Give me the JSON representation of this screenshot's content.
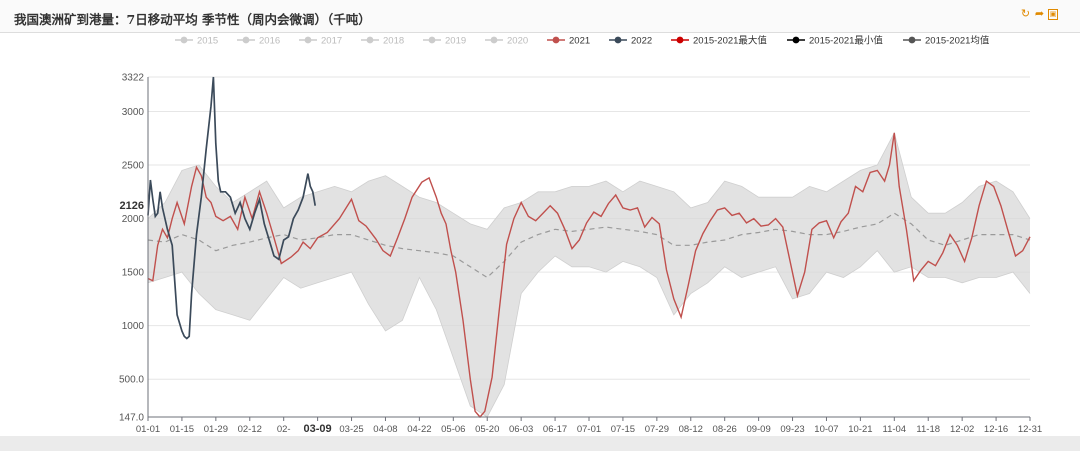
{
  "title": "我国澳洲矿到港量：7日移动平均 季节性（周内会微调）（千吨）",
  "toolbar": {
    "refresh_icon": "refresh-icon",
    "share_icon": "share-icon",
    "save_icon": "save-image-icon"
  },
  "colors": {
    "y2021": "#c0504d",
    "y2022": "#3b4a5a",
    "band": "#d8d8d8",
    "avg": "#9a9a9a",
    "inactive": "#cccccc",
    "max_marker": "#cc0000",
    "min_marker": "#000000",
    "avg_marker": "#555555"
  },
  "chart_data": {
    "type": "line",
    "title": "我国澳洲矿到港量：7日移动平均 季节性（周内会微调）（千吨）",
    "ylim": [
      147,
      3322
    ],
    "y_ticks": [
      "147.0",
      "500.0",
      "1000",
      "1500",
      "2000",
      "2500",
      "3000",
      "3322"
    ],
    "x_ticks": [
      "01-01",
      "01-15",
      "01-29",
      "02-12",
      "02-",
      "03-09",
      "03-25",
      "04-08",
      "04-22",
      "05-06",
      "05-20",
      "06-03",
      "06-17",
      "07-01",
      "07-15",
      "07-29",
      "08-12",
      "08-26",
      "09-09",
      "09-23",
      "10-07",
      "10-21",
      "11-04",
      "11-18",
      "12-02",
      "12-16",
      "12-31"
    ],
    "pointer": {
      "x_label": "03-09",
      "y_label": "2126"
    },
    "grid": true,
    "legend_position": "top",
    "legend": [
      {
        "name": "2015",
        "active": false
      },
      {
        "name": "2016",
        "active": false
      },
      {
        "name": "2017",
        "active": false
      },
      {
        "name": "2018",
        "active": false
      },
      {
        "name": "2019",
        "active": false
      },
      {
        "name": "2020",
        "active": false
      },
      {
        "name": "2021",
        "active": true
      },
      {
        "name": "2022",
        "active": true
      },
      {
        "name": "2015-2021最大值",
        "active": true
      },
      {
        "name": "2015-2021最小值",
        "active": true
      },
      {
        "name": "2015-2021均值",
        "active": true
      }
    ],
    "series": [
      {
        "name": "2021",
        "x": [
          1,
          3,
          5,
          7,
          9,
          11,
          13,
          16,
          19,
          21,
          23,
          25,
          27,
          29,
          32,
          35,
          38,
          41,
          44,
          47,
          50,
          53,
          56,
          60,
          63,
          65,
          68,
          71,
          75,
          80,
          85,
          88,
          91,
          95,
          98,
          101,
          104,
          107,
          110,
          114,
          117,
          120,
          122,
          124,
          126,
          128,
          131,
          134,
          136,
          138,
          140,
          143,
          146,
          149,
          152,
          155,
          158,
          161,
          164,
          167,
          170,
          173,
          176,
          179,
          182,
          185,
          188,
          191,
          194,
          197,
          200,
          203,
          206,
          209,
          212,
          215,
          218,
          221,
          224,
          227,
          230,
          233,
          236,
          239,
          242,
          245,
          248,
          251,
          254,
          257,
          260,
          263,
          266,
          269,
          272,
          275,
          278,
          281,
          284,
          287,
          290,
          293,
          296,
          299,
          302,
          305,
          307,
          309,
          311,
          314,
          317,
          320,
          323,
          326,
          329,
          332,
          335,
          338,
          341,
          344,
          347,
          350,
          353,
          356,
          359,
          362,
          365
        ],
        "values": [
          1440,
          1420,
          1750,
          1900,
          1820,
          2000,
          2150,
          1950,
          2300,
          2480,
          2400,
          2200,
          2150,
          2020,
          1980,
          2020,
          1900,
          2200,
          2000,
          2250,
          2050,
          1820,
          1580,
          1640,
          1700,
          1780,
          1720,
          1820,
          1870,
          2000,
          2180,
          1980,
          1930,
          1810,
          1700,
          1650,
          1820,
          2000,
          2200,
          2340,
          2380,
          2200,
          2050,
          1950,
          1700,
          1500,
          1050,
          500,
          200,
          147,
          200,
          520,
          1150,
          1760,
          2000,
          2150,
          2020,
          1980,
          2050,
          2120,
          2050,
          1900,
          1720,
          1800,
          1960,
          2060,
          2020,
          2140,
          2220,
          2100,
          2080,
          2100,
          1920,
          2010,
          1950,
          1520,
          1250,
          1080,
          1380,
          1700,
          1860,
          1980,
          2080,
          2100,
          2030,
          2050,
          1960,
          2000,
          1930,
          1940,
          2000,
          1920,
          1600,
          1280,
          1500,
          1900,
          1960,
          1980,
          1820,
          1970,
          2050,
          2300,
          2250,
          2430,
          2450,
          2350,
          2500,
          2800,
          2300,
          1900,
          1420,
          1520,
          1600,
          1560,
          1680,
          1850,
          1750,
          1600,
          1820,
          2120,
          2350,
          2300,
          2120,
          1880,
          1650,
          1700,
          1830
        ]
      },
      {
        "name": "2022",
        "x": [
          1,
          2,
          3,
          4,
          5,
          6,
          7,
          9,
          11,
          13,
          15,
          16,
          17,
          18,
          19,
          21,
          23,
          25,
          27,
          28,
          29,
          30,
          31,
          33,
          35,
          37,
          39,
          41,
          43,
          45,
          47,
          49,
          51,
          53,
          55,
          57,
          59,
          61,
          63,
          65,
          67,
          68,
          69,
          70
        ],
        "values": [
          2030,
          2360,
          2180,
          2020,
          2050,
          2250,
          2100,
          1900,
          1750,
          1100,
          950,
          900,
          880,
          900,
          1300,
          1850,
          2200,
          2650,
          3050,
          3322,
          2700,
          2350,
          2250,
          2250,
          2200,
          2050,
          2150,
          2000,
          1900,
          2050,
          2180,
          1950,
          1800,
          1650,
          1620,
          1800,
          1830,
          2000,
          2080,
          2200,
          2420,
          2300,
          2250,
          2120
        ]
      },
      {
        "name": "2015-2021最大值",
        "x": [
          1,
          8,
          15,
          22,
          29,
          36,
          43,
          50,
          57,
          64,
          71,
          78,
          85,
          92,
          99,
          106,
          113,
          120,
          127,
          134,
          141,
          148,
          155,
          162,
          169,
          176,
          183,
          190,
          197,
          204,
          211,
          218,
          225,
          232,
          239,
          246,
          253,
          260,
          267,
          274,
          281,
          288,
          295,
          302,
          309,
          316,
          323,
          330,
          337,
          344,
          351,
          358,
          365
        ],
        "values": [
          2000,
          2150,
          2450,
          2500,
          2300,
          2150,
          2250,
          2350,
          2100,
          2200,
          2250,
          2300,
          2250,
          2350,
          2400,
          2300,
          2200,
          2150,
          2050,
          1950,
          1900,
          2100,
          2150,
          2250,
          2250,
          2300,
          2300,
          2350,
          2250,
          2350,
          2300,
          2250,
          2100,
          2150,
          2350,
          2300,
          2200,
          2200,
          2200,
          2300,
          2250,
          2350,
          2450,
          2500,
          2800,
          2200,
          2050,
          2050,
          2150,
          2300,
          2350,
          2250,
          2000
        ]
      },
      {
        "name": "2015-2021最小值",
        "x": [
          1,
          8,
          15,
          22,
          29,
          36,
          43,
          50,
          57,
          64,
          71,
          78,
          85,
          92,
          99,
          106,
          113,
          120,
          127,
          134,
          141,
          148,
          155,
          162,
          169,
          176,
          183,
          190,
          197,
          204,
          211,
          218,
          225,
          232,
          239,
          246,
          253,
          260,
          267,
          274,
          281,
          288,
          295,
          302,
          309,
          316,
          323,
          330,
          337,
          344,
          351,
          358,
          365
        ],
        "values": [
          1400,
          1450,
          1500,
          1300,
          1150,
          1100,
          1050,
          1250,
          1450,
          1350,
          1400,
          1450,
          1500,
          1200,
          950,
          1050,
          1450,
          1150,
          700,
          250,
          147,
          450,
          1300,
          1500,
          1650,
          1550,
          1550,
          1500,
          1600,
          1550,
          1450,
          1100,
          1300,
          1400,
          1550,
          1450,
          1500,
          1550,
          1250,
          1300,
          1500,
          1450,
          1550,
          1700,
          1500,
          1550,
          1450,
          1450,
          1400,
          1450,
          1450,
          1500,
          1300
        ]
      },
      {
        "name": "2015-2021均值",
        "x": [
          1,
          8,
          15,
          22,
          29,
          36,
          43,
          50,
          57,
          64,
          71,
          78,
          85,
          92,
          99,
          106,
          113,
          120,
          127,
          134,
          141,
          148,
          155,
          162,
          169,
          176,
          183,
          190,
          197,
          204,
          211,
          218,
          225,
          232,
          239,
          246,
          253,
          260,
          267,
          274,
          281,
          288,
          295,
          302,
          309,
          316,
          323,
          330,
          337,
          344,
          351,
          358,
          365
        ],
        "values": [
          1800,
          1780,
          1850,
          1800,
          1700,
          1750,
          1780,
          1820,
          1850,
          1800,
          1820,
          1850,
          1850,
          1800,
          1750,
          1720,
          1700,
          1680,
          1650,
          1550,
          1450,
          1600,
          1780,
          1850,
          1900,
          1880,
          1900,
          1920,
          1900,
          1880,
          1850,
          1750,
          1750,
          1780,
          1800,
          1850,
          1870,
          1900,
          1880,
          1850,
          1850,
          1880,
          1920,
          1950,
          2050,
          1950,
          1800,
          1750,
          1800,
          1850,
          1850,
          1850,
          1800
        ]
      }
    ]
  }
}
